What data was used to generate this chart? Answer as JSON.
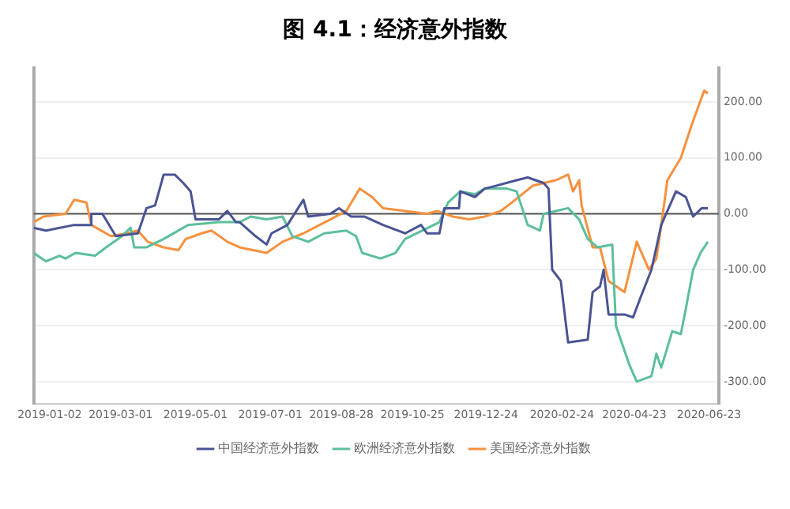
{
  "chart_data": {
    "type": "line",
    "title": "图 4.1：经济意外指数",
    "xlim": [
      "2018-12-20",
      "2020-07-01"
    ],
    "xticks": [
      "2019-01-02",
      "2019-03-01",
      "2019-05-01",
      "2019-07-01",
      "2019-08-28",
      "2019-10-25",
      "2019-12-24",
      "2020-02-24",
      "2020-04-23",
      "2020-06-23"
    ],
    "ylim": [
      -340,
      260
    ],
    "yticks": [
      {
        "value": -300,
        "label": "-300.00"
      },
      {
        "value": -200,
        "label": "-200.00"
      },
      {
        "value": -100,
        "label": "-100.00"
      },
      {
        "value": 0,
        "label": "0.00"
      },
      {
        "value": 100,
        "label": "100.00"
      },
      {
        "value": 200,
        "label": "200.00"
      }
    ],
    "grid": "y",
    "legend": "bottom",
    "marker": "none",
    "line_style": "solid",
    "ref_lines": [
      {
        "axis": "y",
        "value": 0,
        "color": "#555555"
      }
    ],
    "series": [
      {
        "name": "中国经济意外指数",
        "color": "#4a5494",
        "x": [
          "2018-12-20",
          "2018-12-30",
          "2019-01-22",
          "2019-02-04",
          "2019-02-05",
          "2019-02-14",
          "2019-02-25",
          "2019-03-15",
          "2019-03-22",
          "2019-03-29",
          "2019-04-05",
          "2019-04-14",
          "2019-04-21",
          "2019-04-27",
          "2019-05-01",
          "2019-05-20",
          "2019-05-27",
          "2019-06-03",
          "2019-06-06",
          "2019-06-19",
          "2019-06-28",
          "2019-07-02",
          "2019-07-15",
          "2019-07-28",
          "2019-08-01",
          "2019-08-19",
          "2019-08-26",
          "2019-09-05",
          "2019-09-16",
          "2019-10-01",
          "2019-10-19",
          "2019-11-01",
          "2019-11-06",
          "2019-11-16",
          "2019-11-20",
          "2019-12-02",
          "2019-12-03",
          "2019-12-15",
          "2019-12-23",
          "2020-01-01",
          "2020-01-18",
          "2020-01-27",
          "2020-02-09",
          "2020-02-13",
          "2020-02-16",
          "2020-02-23",
          "2020-02-29",
          "2020-03-16",
          "2020-03-20",
          "2020-03-26",
          "2020-03-29",
          "2020-04-02",
          "2020-04-15",
          "2020-04-22",
          "2020-04-28",
          "2020-05-07",
          "2020-05-15",
          "2020-05-27",
          "2020-06-04",
          "2020-06-10",
          "2020-06-17",
          "2020-06-22"
        ],
        "values": [
          -25,
          -30,
          -20,
          -20,
          0,
          0,
          -40,
          -35,
          10,
          15,
          70,
          70,
          55,
          40,
          -10,
          -10,
          5,
          -15,
          -15,
          -40,
          -55,
          -35,
          -20,
          25,
          -5,
          0,
          10,
          -5,
          -5,
          -20,
          -35,
          -20,
          -35,
          -35,
          10,
          10,
          40,
          30,
          45,
          50,
          60,
          65,
          55,
          45,
          -100,
          -120,
          -230,
          -225,
          -140,
          -130,
          -100,
          -180,
          -180,
          -185,
          -150,
          -100,
          -20,
          40,
          30,
          -5,
          10,
          10
        ]
      },
      {
        "name": "欧洲经济意外指数",
        "color": "#5bbf9c",
        "x": [
          "2018-12-20",
          "2018-12-30",
          "2019-01-10",
          "2019-01-15",
          "2019-01-23",
          "2019-02-08",
          "2019-02-17",
          "2019-03-02",
          "2019-03-09",
          "2019-03-12",
          "2019-03-22",
          "2019-04-05",
          "2019-04-25",
          "2019-05-20",
          "2019-06-06",
          "2019-06-15",
          "2019-06-28",
          "2019-07-11",
          "2019-07-19",
          "2019-08-01",
          "2019-08-14",
          "2019-09-01",
          "2019-09-09",
          "2019-09-14",
          "2019-09-29",
          "2019-10-11",
          "2019-10-19",
          "2019-11-16",
          "2019-11-23",
          "2019-12-03",
          "2019-12-15",
          "2019-12-23",
          "2020-01-10",
          "2020-01-18",
          "2020-01-27",
          "2020-02-06",
          "2020-02-09",
          "2020-02-19",
          "2020-02-29",
          "2020-03-09",
          "2020-03-16",
          "2020-03-24",
          "2020-04-05",
          "2020-04-08",
          "2020-04-19",
          "2020-04-25",
          "2020-05-07",
          "2020-05-11",
          "2020-05-15",
          "2020-05-24",
          "2020-05-31",
          "2020-06-04",
          "2020-06-10",
          "2020-06-16",
          "2020-06-22"
        ],
        "values": [
          -70,
          -85,
          -75,
          -80,
          -70,
          -75,
          -60,
          -40,
          -25,
          -60,
          -60,
          -45,
          -20,
          -15,
          -15,
          -5,
          -10,
          -5,
          -40,
          -50,
          -35,
          -30,
          -40,
          -70,
          -80,
          -70,
          -45,
          -15,
          20,
          40,
          35,
          45,
          45,
          40,
          -20,
          -30,
          0,
          5,
          10,
          -10,
          -45,
          -60,
          -55,
          -200,
          -270,
          -300,
          -290,
          -250,
          -275,
          -210,
          -215,
          -170,
          -100,
          -70,
          -50
        ]
      },
      {
        "name": "美国经济意外指数",
        "color": "#f5913e",
        "x": [
          "2018-12-20",
          "2018-12-28",
          "2019-01-15",
          "2019-01-22",
          "2019-02-01",
          "2019-02-05",
          "2019-02-21",
          "2019-03-06",
          "2019-03-15",
          "2019-03-23",
          "2019-04-05",
          "2019-04-17",
          "2019-04-23",
          "2019-05-06",
          "2019-05-14",
          "2019-05-27",
          "2019-06-06",
          "2019-06-28",
          "2019-07-11",
          "2019-07-28",
          "2019-08-19",
          "2019-09-01",
          "2019-09-12",
          "2019-09-22",
          "2019-10-01",
          "2019-10-19",
          "2019-11-06",
          "2019-11-14",
          "2019-11-27",
          "2019-12-10",
          "2019-12-23",
          "2020-01-05",
          "2020-01-14",
          "2020-01-31",
          "2020-02-19",
          "2020-02-29",
          "2020-03-04",
          "2020-03-09",
          "2020-03-11",
          "2020-03-20",
          "2020-03-26",
          "2020-04-02",
          "2020-04-15",
          "2020-04-25",
          "2020-05-05",
          "2020-05-11",
          "2020-05-15",
          "2020-05-20",
          "2020-05-31",
          "2020-06-09",
          "2020-06-19",
          "2020-06-22"
        ],
        "values": [
          -15,
          -5,
          0,
          25,
          20,
          -20,
          -40,
          -35,
          -30,
          -50,
          -60,
          -65,
          -45,
          -35,
          -30,
          -50,
          -60,
          -70,
          -50,
          -35,
          -10,
          5,
          45,
          30,
          10,
          5,
          0,
          5,
          -5,
          -10,
          -5,
          5,
          20,
          50,
          60,
          70,
          40,
          60,
          15,
          -60,
          -60,
          -120,
          -140,
          -50,
          -100,
          -80,
          -20,
          60,
          100,
          160,
          220,
          215
        ]
      }
    ]
  }
}
